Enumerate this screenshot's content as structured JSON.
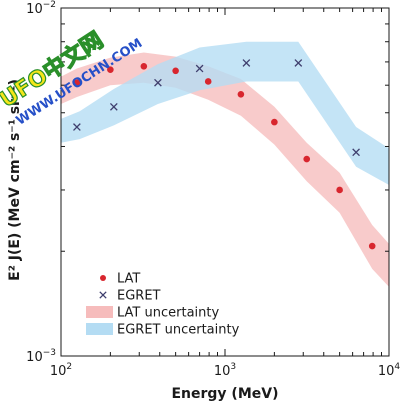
{
  "chart_data": {
    "type": "scatter",
    "xlabel": "Energy (MeV)",
    "ylabel": "E² J(E) (MeV cm⁻² s⁻¹ sr⁻¹)",
    "x_scale": "log",
    "y_scale": "log",
    "xlim": [
      100,
      10000
    ],
    "ylim": [
      0.001,
      0.01
    ],
    "x_ticks": [
      {
        "value": 100,
        "base": "10",
        "exp": "2"
      },
      {
        "value": 1000,
        "base": "10",
        "exp": "3"
      },
      {
        "value": 10000,
        "base": "10",
        "exp": "4"
      }
    ],
    "y_ticks": [
      {
        "value": 0.01,
        "base": "10",
        "exp": "−2"
      },
      {
        "value": 0.001,
        "base": "10",
        "exp": "−3"
      }
    ],
    "grid": false,
    "legend_position": "bottom-left",
    "series": [
      {
        "name": "LAT",
        "kind": "points",
        "marker": "dot",
        "color": "#d8262e",
        "x": [
          125,
          200,
          320,
          500,
          790,
          1250,
          2000,
          3150,
          5000,
          7900
        ],
        "y": [
          0.0061,
          0.00665,
          0.0068,
          0.0066,
          0.00615,
          0.00565,
          0.0047,
          0.00368,
          0.003,
          0.00207
        ]
      },
      {
        "name": "EGRET",
        "kind": "points",
        "marker": "x",
        "color": "#3f3f6e",
        "x": [
          125,
          210,
          390,
          700,
          1350,
          2800,
          6300
        ],
        "y": [
          0.00455,
          0.0052,
          0.0061,
          0.0067,
          0.00695,
          0.00695,
          0.00385
        ]
      },
      {
        "name": "LAT uncertainty",
        "kind": "band",
        "color": "#f6bcbc",
        "x": [
          100,
          125,
          200,
          320,
          500,
          790,
          1250,
          2000,
          3150,
          5000,
          7900,
          10000
        ],
        "y_low": [
          0.0053,
          0.00555,
          0.006,
          0.0061,
          0.0059,
          0.00545,
          0.0049,
          0.00405,
          0.00318,
          0.00258,
          0.00178,
          0.00158
        ],
        "y_high": [
          0.00635,
          0.0067,
          0.0072,
          0.00745,
          0.00725,
          0.0068,
          0.00625,
          0.0052,
          0.0041,
          0.00336,
          0.00238,
          0.0021
        ]
      },
      {
        "name": "EGRET uncertainty",
        "kind": "band",
        "color": "#b4dcf3",
        "x": [
          100,
          130,
          210,
          390,
          700,
          1350,
          2800,
          6300,
          10000
        ],
        "y_low": [
          0.0041,
          0.0042,
          0.0046,
          0.0053,
          0.0058,
          0.00615,
          0.00615,
          0.0035,
          0.0031
        ],
        "y_high": [
          0.0048,
          0.00505,
          0.00585,
          0.0069,
          0.0077,
          0.008,
          0.008,
          0.00455,
          0.00395
        ]
      }
    ]
  },
  "watermark": {
    "line1": "UFO中文网",
    "line2": "WWW.UFOCHN.COM"
  }
}
